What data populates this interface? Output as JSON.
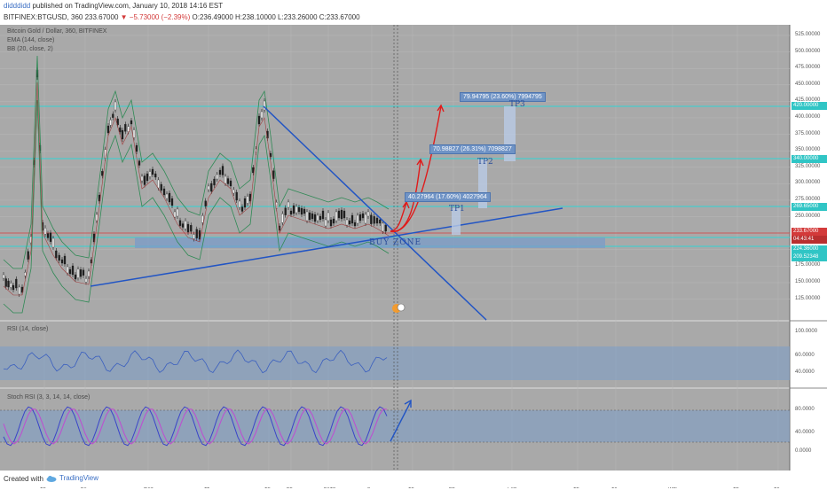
{
  "header": {
    "user": "didddidd",
    "published": "published on TradingView.com, January 10, 2018 14:16 EST",
    "symbol_line": "BITFINEX:BTGUSD, 360  233.67000",
    "change": "▼ −5.73000 (−2.39%)",
    "ohlc": "O:236.49000  H:238.10000  L:233.26000  C:233.67000"
  },
  "legend": {
    "title": "Bitcoin Gold / Dollar, 360, BITFINEX",
    "ema": "EMA (144, close)",
    "bb": "BB (20, close, 2)",
    "rsi": "RSI (14, close)",
    "stoch": "Stoch RSI (3, 3, 14, 14, close)"
  },
  "price_axis": [
    "525.00000",
    "500.00000",
    "475.00000",
    "450.00000",
    "425.00000",
    "400.00000",
    "375.00000",
    "350.00000",
    "325.00000",
    "300.00000",
    "275.00000",
    "250.00000",
    "225.00000",
    "200.00000",
    "175.00000",
    "150.00000",
    "125.00000"
  ],
  "price_tags": {
    "tp3": "420.00000",
    "tp2": "340.00000",
    "tp1": "269.65000",
    "last": "233.67000",
    "timer": "04:43:41",
    "s1": "224.36000",
    "s2": "209.52348"
  },
  "rsi_axis": [
    "100.0000",
    "60.0000",
    "40.0000"
  ],
  "stoch_axis": [
    "80.0000",
    "40.0000",
    "0.0000"
  ],
  "time_axis": [
    "13",
    "20",
    "Dec",
    "11",
    "18",
    "25",
    "2018",
    "8",
    "15",
    "22",
    "Feb",
    "12",
    "19",
    "Mar",
    "12",
    "19"
  ],
  "annotations": {
    "tp3_label": "79.94795 (23.60%) 7994795",
    "tp2_label": "70.98827 (26.31%) 7098827",
    "tp1_label": "40.27964 (17.60%) 4027964",
    "tp3": "TP3",
    "tp2": "TP2",
    "tp1": "TP1",
    "buy_zone": "BUY ZONE"
  },
  "footer": {
    "created": "Created with",
    "brand": "TradingView"
  },
  "colors": {
    "panel_bg": "#a9a9a9",
    "cyan": "#30d5d5",
    "zone": "#7a9cc9",
    "trend": "#2255c4",
    "red_arrow": "#e01b1b",
    "bb": "#2f8a55",
    "price_last": "#d33a3a"
  },
  "icons": {
    "logo": "tradingview-cloud-icon"
  }
}
